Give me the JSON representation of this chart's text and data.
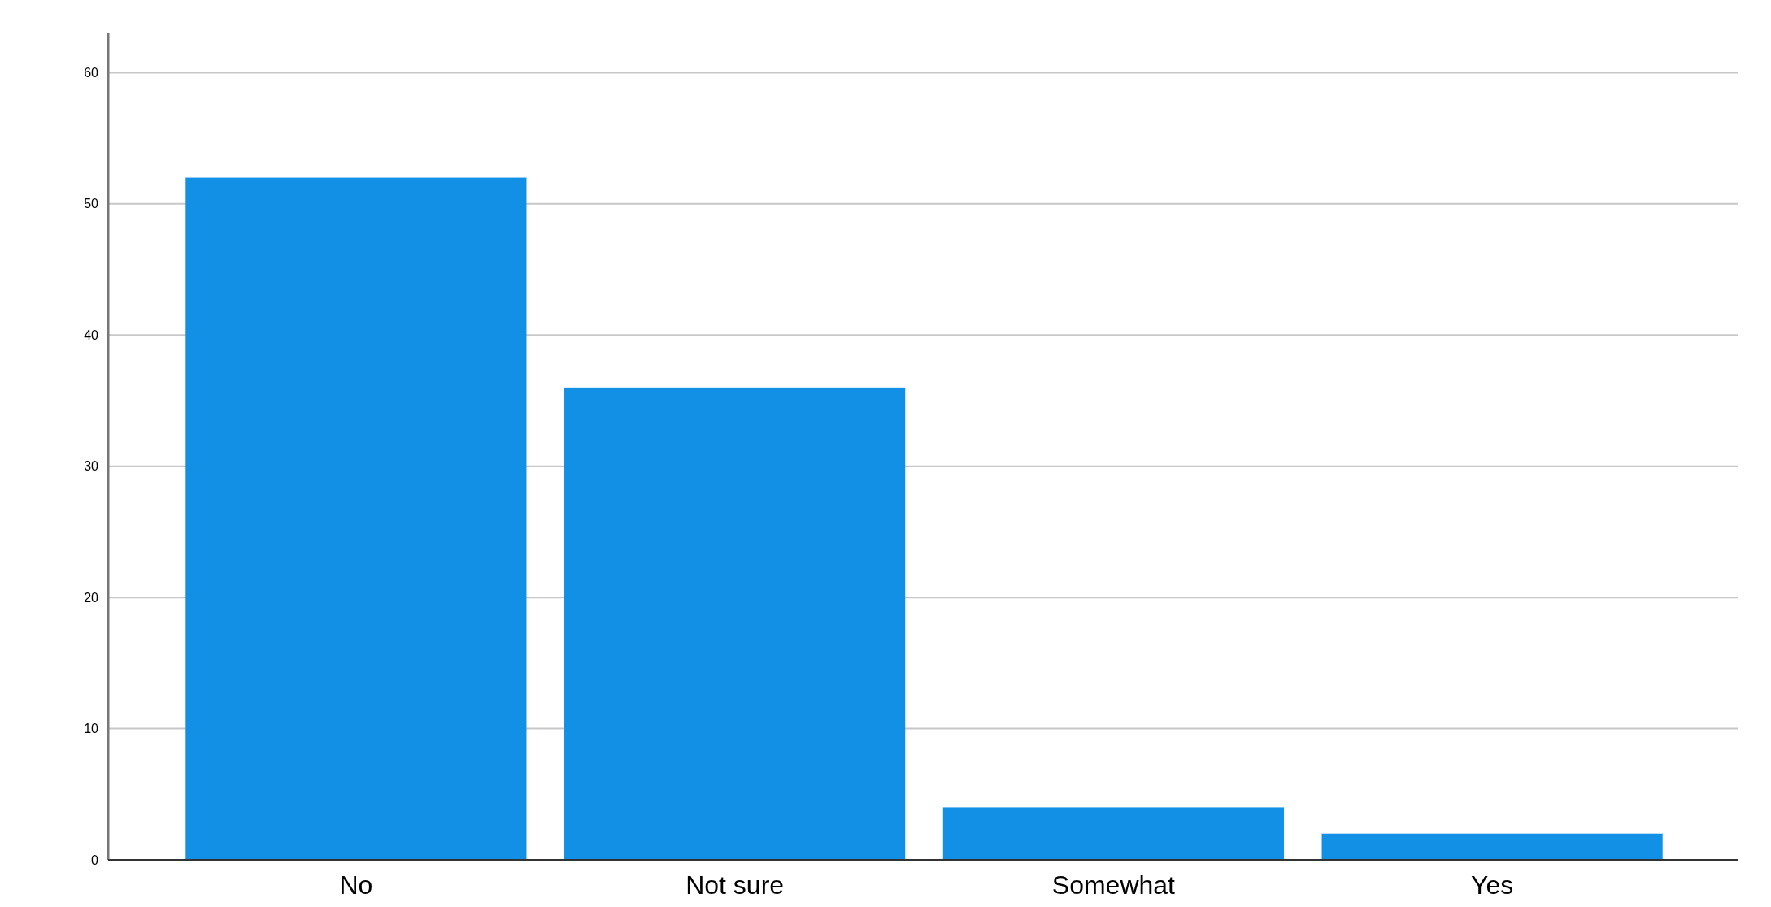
{
  "chart_data": {
    "type": "bar",
    "categories": [
      "No",
      "Not sure",
      "Somewhat",
      "Yes"
    ],
    "values": [
      52,
      36,
      4,
      2
    ],
    "color": "#1190e6",
    "ylim": [
      0,
      63
    ],
    "yticks": [
      0,
      10,
      20,
      30,
      40,
      50,
      60
    ],
    "grid": "y"
  }
}
